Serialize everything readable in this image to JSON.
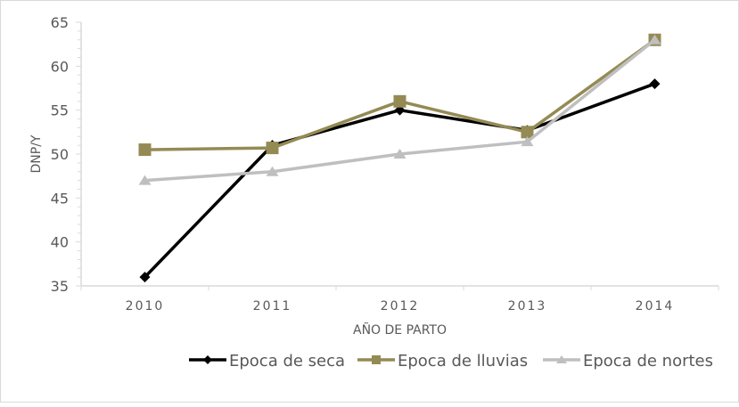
{
  "chart_data": {
    "type": "line",
    "title": "",
    "xlabel": "AÑO DE PARTO",
    "ylabel": "DNP/Y",
    "categories": [
      "2010",
      "2011",
      "2012",
      "2013",
      "2014"
    ],
    "ylim": [
      35,
      65
    ],
    "yticks": [
      35,
      40,
      45,
      50,
      55,
      60,
      65
    ],
    "grid": false,
    "legend_position": "bottom",
    "series": [
      {
        "name": "Epoca de seca",
        "marker": "diamond",
        "color": "#000000",
        "values": [
          36,
          51,
          55,
          52.7,
          58
        ]
      },
      {
        "name": "Epoca de lluvias",
        "marker": "square",
        "color": "#948A54",
        "values": [
          50.5,
          50.7,
          56,
          52.5,
          63
        ]
      },
      {
        "name": "Epoca de nortes",
        "marker": "triangle",
        "color": "#BFBFBF",
        "values": [
          47,
          48,
          50,
          51.4,
          63
        ]
      }
    ]
  }
}
